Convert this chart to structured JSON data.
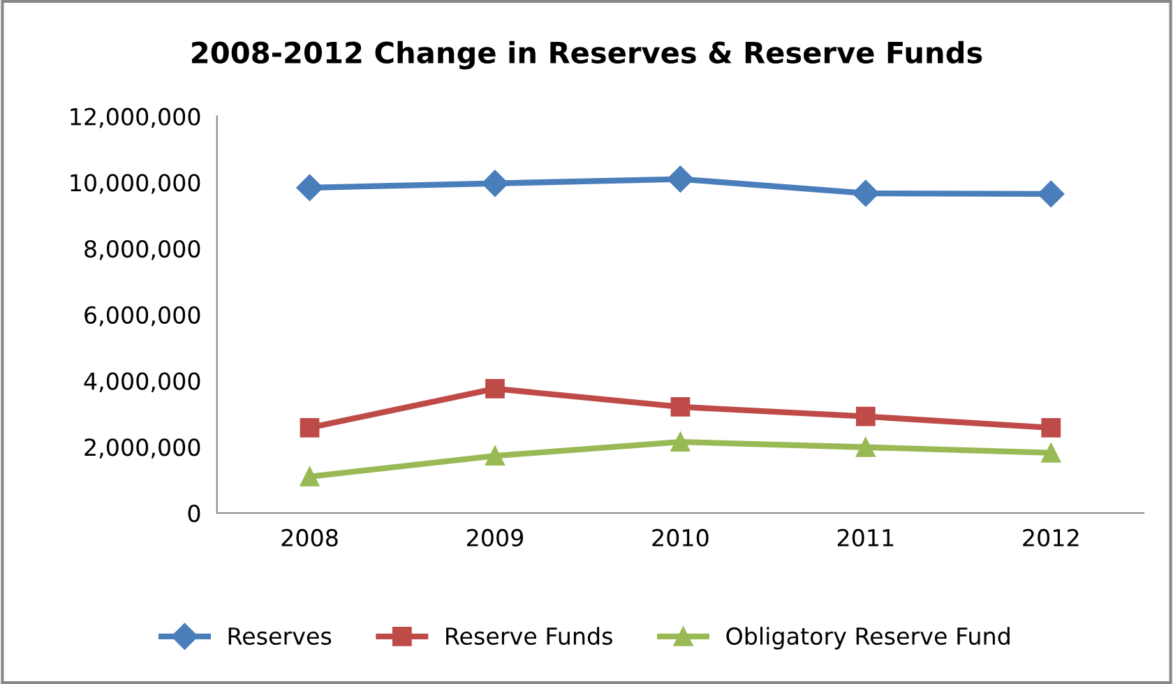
{
  "chart_data": {
    "type": "line",
    "title": "2008-2012 Change in Reserves & Reserve Funds",
    "categories": [
      "2008",
      "2009",
      "2010",
      "2011",
      "2012"
    ],
    "series": [
      {
        "name": "Reserves",
        "color": "#4a7ebb",
        "marker": "diamond",
        "values": [
          9840000,
          9970000,
          10100000,
          9670000,
          9650000
        ]
      },
      {
        "name": "Reserve Funds",
        "color": "#be4b48",
        "marker": "square",
        "values": [
          2580000,
          3760000,
          3210000,
          2920000,
          2580000
        ]
      },
      {
        "name": "Obligatory Reserve Fund",
        "color": "#98b954",
        "marker": "triangle",
        "values": [
          1100000,
          1730000,
          2150000,
          1990000,
          1820000
        ]
      }
    ],
    "ylim": [
      0,
      12000000
    ],
    "yticks": [
      {
        "value": 0,
        "label": "0"
      },
      {
        "value": 2000000,
        "label": "2,000,000"
      },
      {
        "value": 4000000,
        "label": "4,000,000"
      },
      {
        "value": 6000000,
        "label": "6,000,000"
      },
      {
        "value": 8000000,
        "label": "8,000,000"
      },
      {
        "value": 10000000,
        "label": "10,000,000"
      },
      {
        "value": 12000000,
        "label": "12,000,000"
      }
    ],
    "grid": false,
    "legend": "bottom",
    "line_style": "solid"
  }
}
